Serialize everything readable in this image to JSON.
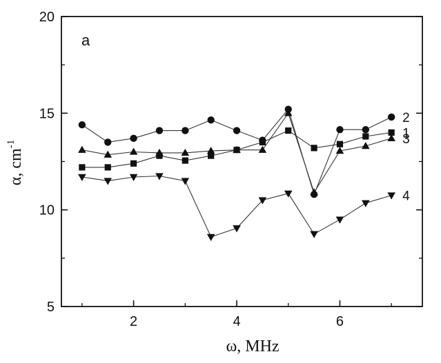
{
  "chart_data": {
    "type": "line",
    "panel_label": "a",
    "xlabel": "ω, MHz",
    "ylabel_main": "α, cm",
    "ylabel_sup": "-1",
    "xlim": [
      0.6,
      7.6
    ],
    "ylim": [
      5,
      20
    ],
    "xticks": [
      2,
      4,
      6
    ],
    "yticks": [
      5,
      10,
      15,
      20
    ],
    "grid": false,
    "x": [
      1,
      1.5,
      2,
      2.5,
      3,
      3.5,
      4,
      4.5,
      5,
      5.5,
      6,
      6.5,
      7
    ],
    "series": [
      {
        "name": "2",
        "marker": "circle",
        "values": [
          14.4,
          13.5,
          13.7,
          14.1,
          14.1,
          14.65,
          14.1,
          13.6,
          15.2,
          10.8,
          14.15,
          14.15,
          14.8
        ]
      },
      {
        "name": "1",
        "marker": "square",
        "values": [
          12.2,
          12.2,
          12.4,
          12.8,
          12.55,
          12.8,
          13.1,
          13.5,
          14.1,
          13.2,
          13.4,
          13.8,
          14.0
        ]
      },
      {
        "name": "3",
        "marker": "triangle-up",
        "values": [
          13.1,
          12.85,
          13.0,
          12.95,
          12.95,
          13.05,
          13.1,
          13.1,
          15.0,
          10.9,
          13.05,
          13.3,
          13.7
        ]
      },
      {
        "name": "4",
        "marker": "triangle-down",
        "values": [
          11.7,
          11.5,
          11.7,
          11.75,
          11.5,
          8.6,
          9.05,
          10.5,
          10.85,
          8.75,
          9.5,
          10.35,
          10.75
        ]
      }
    ]
  }
}
